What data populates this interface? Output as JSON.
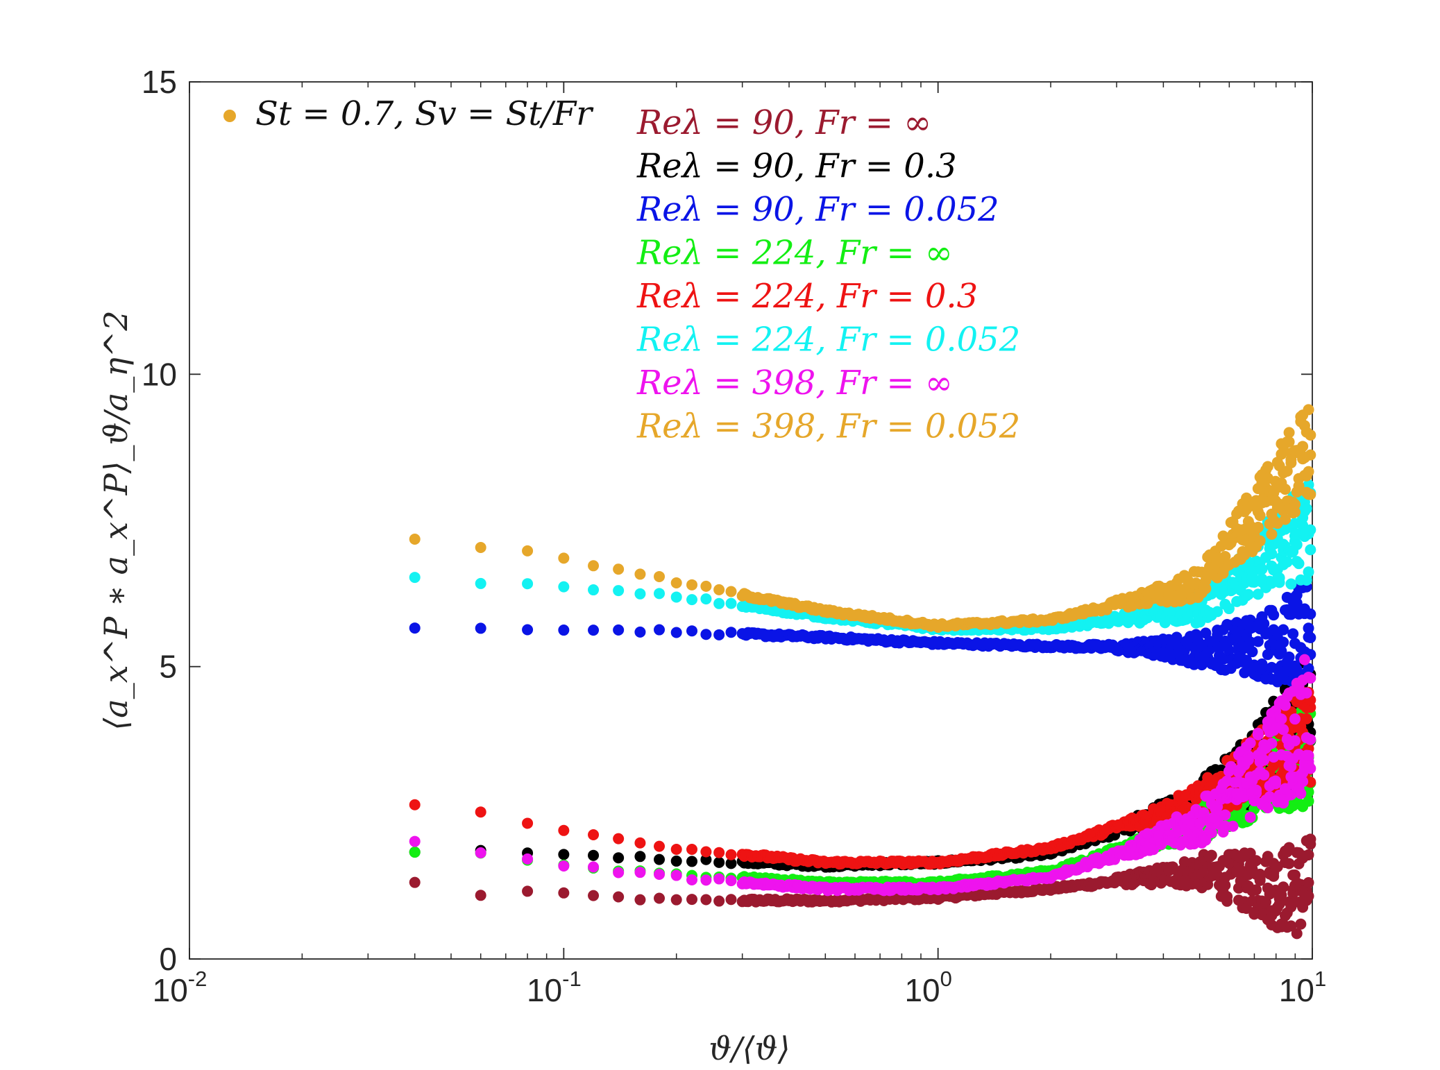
{
  "chart_data": {
    "type": "scatter",
    "xscale": "log",
    "xlim": [
      0.01,
      10
    ],
    "ylim": [
      0,
      15
    ],
    "x_ticks": [
      {
        "value": 0.01,
        "base": "10",
        "exp": "-2"
      },
      {
        "value": 0.1,
        "base": "10",
        "exp": "-1"
      },
      {
        "value": 1,
        "base": "10",
        "exp": "0"
      },
      {
        "value": 10,
        "base": "10",
        "exp": "1"
      }
    ],
    "y_ticks": [
      "0",
      "5",
      "10",
      "15"
    ],
    "xlabel": "ϑ/⟨ϑ⟩",
    "ylabel": "⟨a_x^P ∗ a_x^P⟩_ϑ/a_η^2",
    "annotation": {
      "text": "St = 0.7, Sv = St/Fr",
      "marker_color": "#e6a72a"
    },
    "grid": false,
    "series": [
      {
        "name": "Reλ = 90, Fr = ∞",
        "color": "#9b1a2f",
        "x": [
          0.04,
          0.06,
          0.08,
          0.1,
          0.2,
          0.5,
          1,
          2,
          5,
          8,
          10
        ],
        "y": [
          1.3,
          1.1,
          1.15,
          1.1,
          1.0,
          1.0,
          1.05,
          1.2,
          1.5,
          1.2,
          1.2
        ]
      },
      {
        "name": "Reλ = 90, Fr = 0.3",
        "color": "#000000",
        "x": [
          0.04,
          0.06,
          0.08,
          0.1,
          0.2,
          0.5,
          1,
          2,
          5,
          8,
          10
        ],
        "y": [
          1.85,
          1.85,
          1.8,
          1.8,
          1.7,
          1.6,
          1.65,
          1.8,
          2.7,
          3.6,
          4.3
        ]
      },
      {
        "name": "Reλ = 90, Fr = 0.052",
        "color": "#0a14e6",
        "x": [
          0.04,
          0.06,
          0.08,
          0.1,
          0.2,
          0.5,
          1,
          2,
          5,
          8,
          10
        ],
        "y": [
          5.65,
          5.65,
          5.65,
          5.65,
          5.6,
          5.5,
          5.4,
          5.35,
          5.3,
          5.4,
          5.6
        ]
      },
      {
        "name": "Reλ = 224, Fr = ∞",
        "color": "#13ee13",
        "x": [
          0.04,
          0.06,
          0.08,
          0.1,
          0.2,
          0.5,
          1,
          2,
          5,
          8,
          10
        ],
        "y": [
          1.85,
          1.8,
          1.7,
          1.6,
          1.45,
          1.3,
          1.3,
          1.5,
          2.3,
          3.2,
          3.5
        ]
      },
      {
        "name": "Reλ = 224, Fr = 0.3",
        "color": "#ee1313",
        "x": [
          0.04,
          0.06,
          0.08,
          0.1,
          0.2,
          0.5,
          1,
          2,
          5,
          8,
          10
        ],
        "y": [
          2.65,
          2.5,
          2.3,
          2.2,
          1.9,
          1.65,
          1.65,
          1.9,
          2.7,
          3.5,
          3.9
        ]
      },
      {
        "name": "Reλ = 224, Fr = 0.052",
        "color": "#13f2f2",
        "x": [
          0.04,
          0.06,
          0.08,
          0.1,
          0.2,
          0.5,
          1,
          2,
          5,
          8,
          10
        ],
        "y": [
          6.5,
          6.45,
          6.4,
          6.35,
          6.2,
          5.85,
          5.65,
          5.65,
          6.0,
          7.0,
          7.4
        ]
      },
      {
        "name": "Reλ = 398, Fr = ∞",
        "color": "#ee13ee",
        "x": [
          0.04,
          0.06,
          0.08,
          0.1,
          0.2,
          0.5,
          1,
          2,
          5,
          8,
          10
        ],
        "y": [
          2.0,
          1.8,
          1.7,
          1.6,
          1.4,
          1.2,
          1.2,
          1.4,
          2.3,
          3.5,
          4.1
        ]
      },
      {
        "name": "Reλ = 398, Fr = 0.052",
        "color": "#e6a72a",
        "x": [
          0.04,
          0.06,
          0.08,
          0.1,
          0.2,
          0.5,
          1,
          2,
          5,
          8,
          10
        ],
        "y": [
          7.2,
          7.05,
          6.95,
          6.85,
          6.45,
          5.95,
          5.7,
          5.8,
          6.4,
          8.0,
          8.7
        ]
      }
    ]
  }
}
